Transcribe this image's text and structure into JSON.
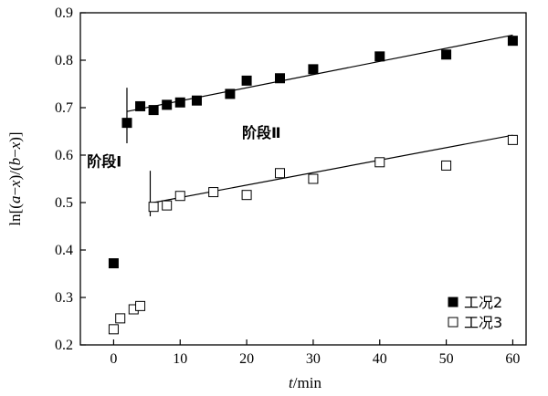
{
  "chart_data": {
    "type": "scatter",
    "xlabel": {
      "var": "t",
      "unit": "/min"
    },
    "ylabel": {
      "prefix": "ln[(",
      "a": "a",
      "m1": "−",
      "x1": "x",
      "mid": ")/(",
      "b": "b",
      "m2": "−",
      "x2": "x",
      "suffix": ")]"
    },
    "xlim": [
      -5,
      62
    ],
    "ylim": [
      0.2,
      0.9
    ],
    "x_ticks": [
      0,
      10,
      20,
      30,
      40,
      50,
      60
    ],
    "y_ticks": [
      0.2,
      0.3,
      0.4,
      0.5,
      0.6,
      0.7,
      0.8,
      0.9
    ],
    "x_tick_labels": [
      "0",
      "10",
      "20",
      "30",
      "40",
      "50",
      "60"
    ],
    "y_tick_labels": [
      "0.2",
      "0.3",
      "0.4",
      "0.5",
      "0.6",
      "0.7",
      "0.8",
      "0.9"
    ],
    "legend_position": "bottom-right",
    "series": [
      {
        "name": "工况2",
        "marker": "filled-square",
        "color": "#000000",
        "points": [
          [
            0,
            0.372
          ],
          [
            2,
            0.668
          ],
          [
            4,
            0.703
          ],
          [
            6,
            0.695
          ],
          [
            8,
            0.706
          ],
          [
            10,
            0.711
          ],
          [
            12.5,
            0.715
          ],
          [
            17.5,
            0.729
          ],
          [
            20,
            0.757
          ],
          [
            25,
            0.762
          ],
          [
            30,
            0.781
          ],
          [
            40,
            0.808
          ],
          [
            50,
            0.812
          ],
          [
            60,
            0.841
          ]
        ],
        "fit_line": [
          [
            2,
            0.692
          ],
          [
            60,
            0.853
          ]
        ]
      },
      {
        "name": "工况3",
        "marker": "open-square",
        "color": "#000000",
        "points": [
          [
            0,
            0.233
          ],
          [
            1,
            0.256
          ],
          [
            3,
            0.275
          ],
          [
            4,
            0.282
          ],
          [
            6,
            0.491
          ],
          [
            8,
            0.494
          ],
          [
            10,
            0.514
          ],
          [
            15,
            0.522
          ],
          [
            20,
            0.516
          ],
          [
            25,
            0.562
          ],
          [
            30,
            0.55
          ],
          [
            40,
            0.585
          ],
          [
            50,
            0.578
          ],
          [
            60,
            0.632
          ]
        ],
        "fit_line": [
          [
            6,
            0.5
          ],
          [
            60,
            0.642
          ]
        ]
      }
    ],
    "stage_markers": [
      {
        "x": 2,
        "y_top": 0.742,
        "y_bottom": 0.625
      },
      {
        "x": 5.5,
        "y_top": 0.567,
        "y_bottom": 0.471
      }
    ],
    "annotations": [
      {
        "text": "阶段Ⅰ",
        "x": -4.0,
        "y": 0.576
      },
      {
        "text": "阶段Ⅱ",
        "x": 19.3,
        "y": 0.637
      }
    ]
  }
}
